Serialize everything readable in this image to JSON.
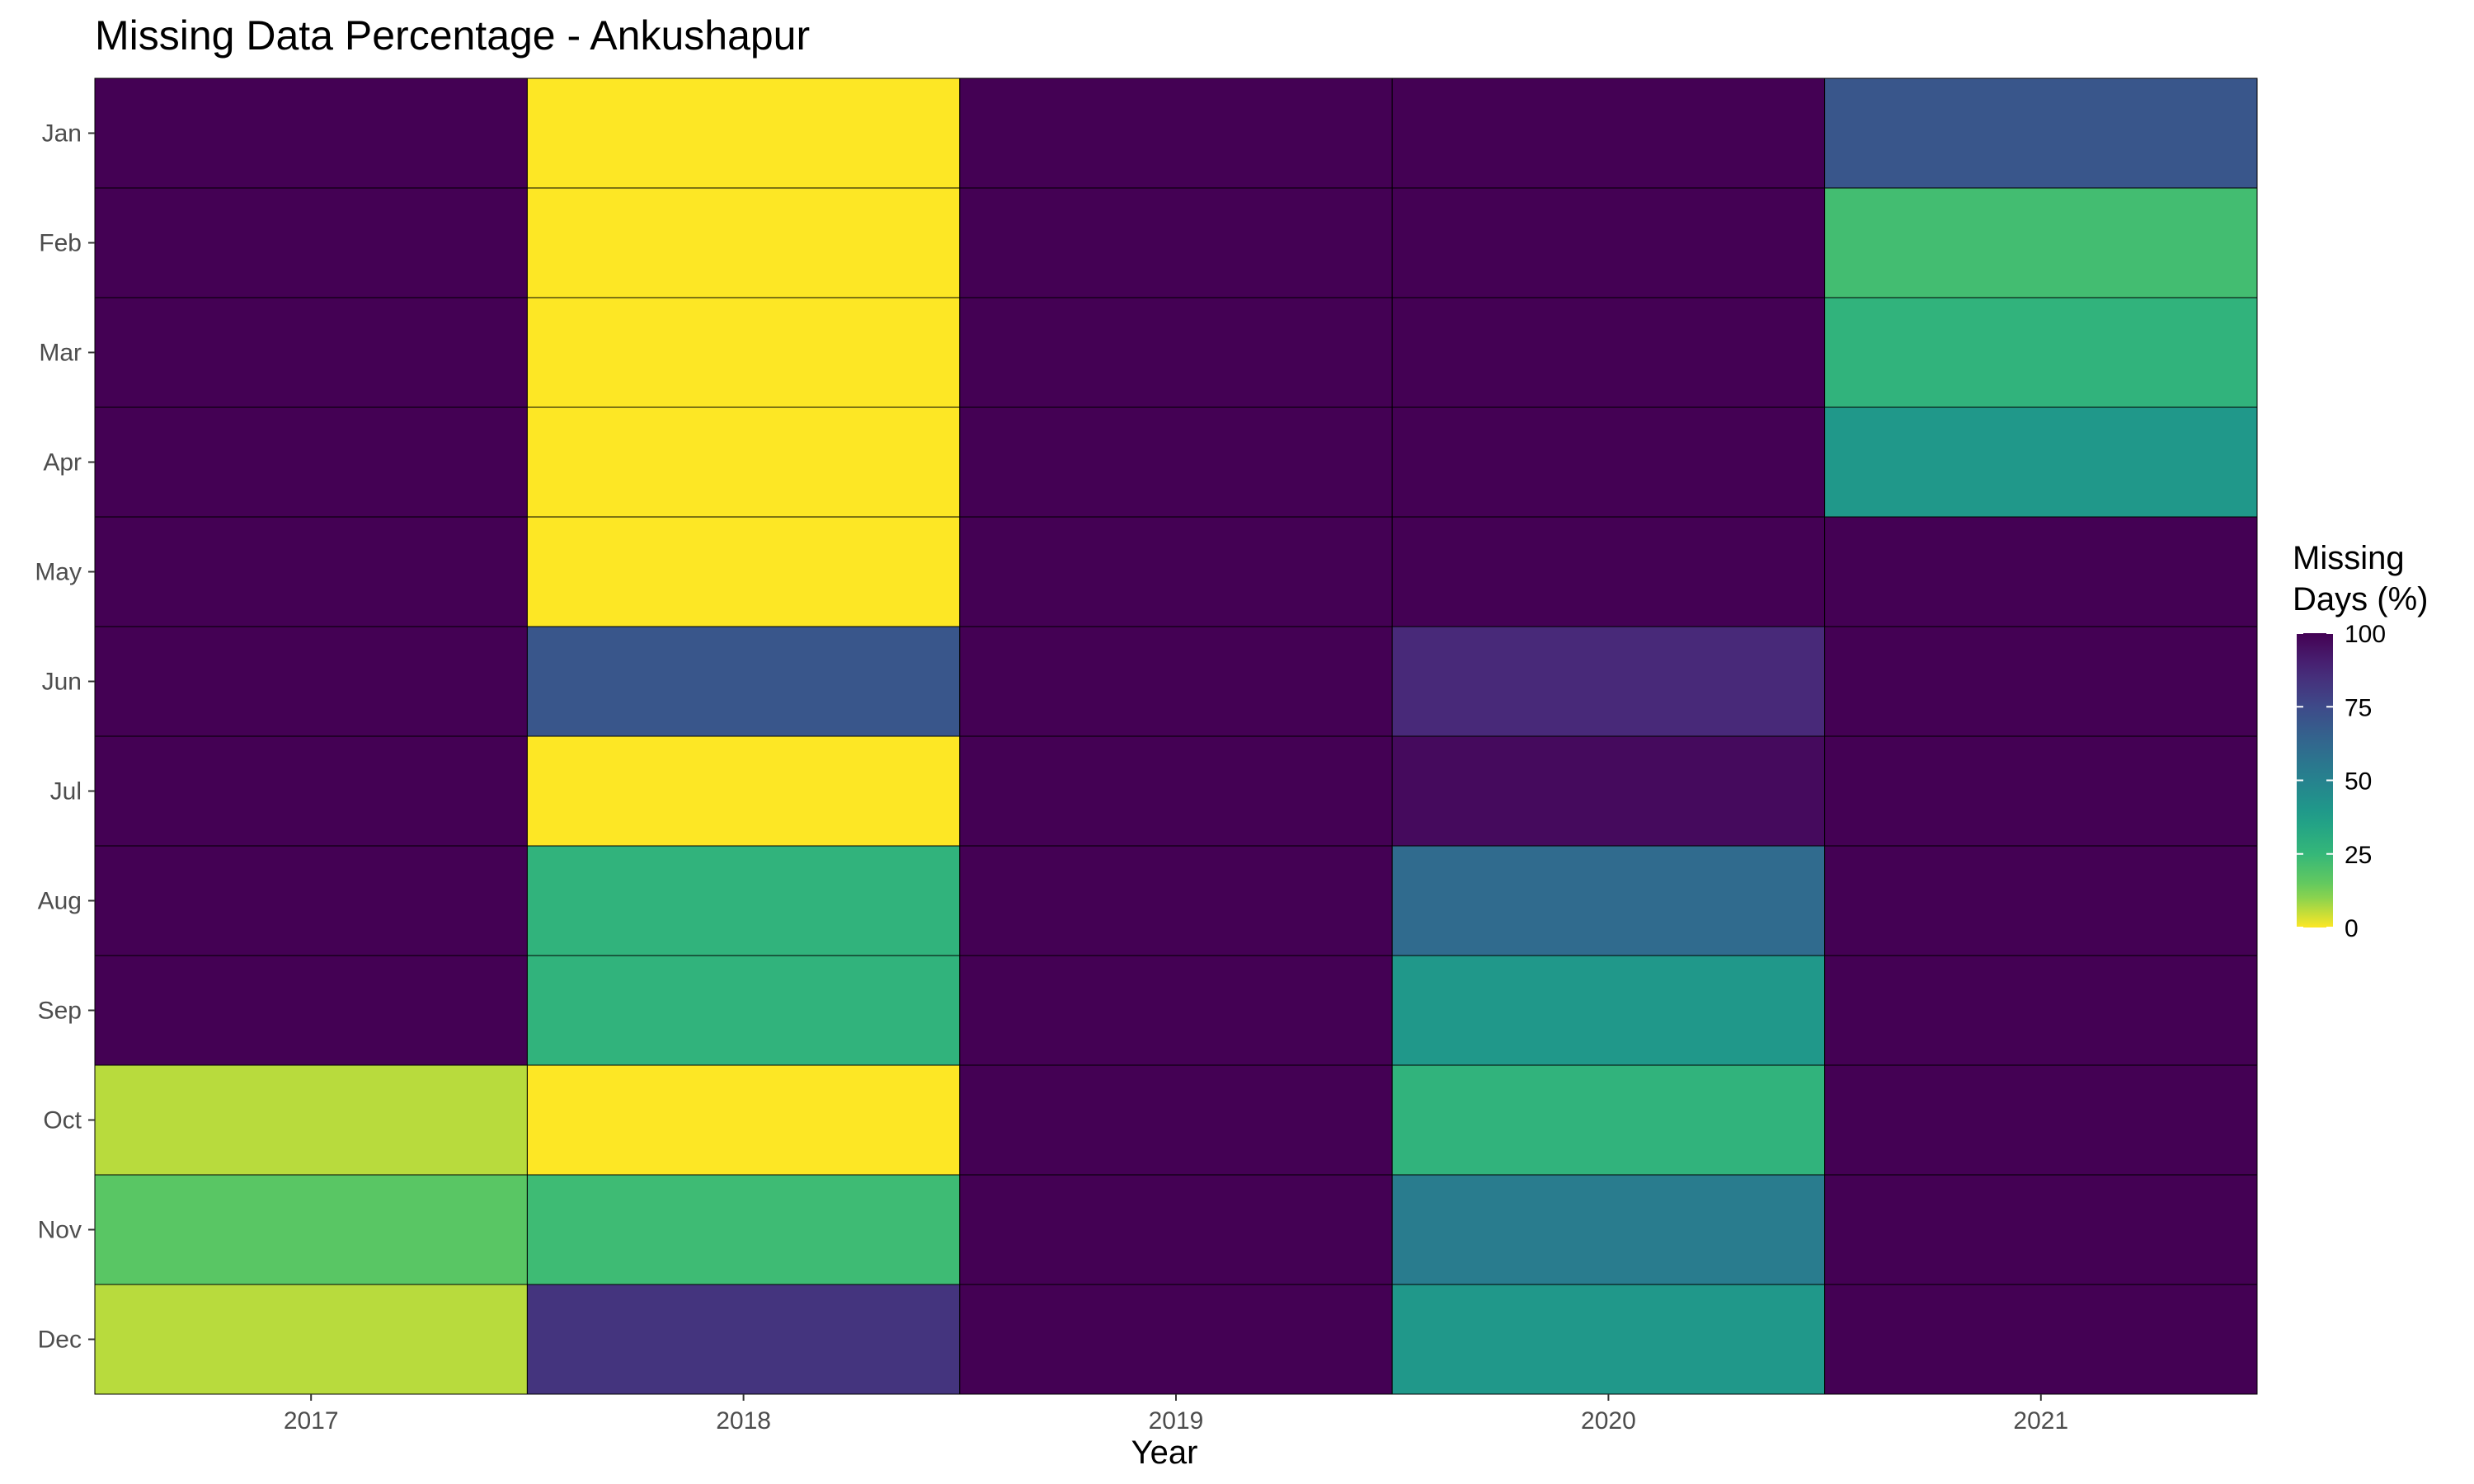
{
  "chart_data": {
    "type": "heatmap",
    "title": "Missing Data Percentage - Ankushapur",
    "xlabel": "Year",
    "ylabel": "",
    "x_categories": [
      "2017",
      "2018",
      "2019",
      "2020",
      "2021"
    ],
    "y_categories": [
      "Jan",
      "Feb",
      "Mar",
      "Apr",
      "May",
      "Jun",
      "Jul",
      "Aug",
      "Sep",
      "Oct",
      "Nov",
      "Dec"
    ],
    "values": [
      [
        100,
        0,
        100,
        100,
        70
      ],
      [
        100,
        0,
        100,
        100,
        22
      ],
      [
        100,
        0,
        100,
        100,
        27
      ],
      [
        100,
        0,
        100,
        100,
        40
      ],
      [
        100,
        0,
        100,
        100,
        100
      ],
      [
        100,
        70,
        100,
        87,
        100
      ],
      [
        100,
        0,
        100,
        97,
        100
      ],
      [
        100,
        27,
        100,
        61,
        100
      ],
      [
        100,
        27,
        100,
        40,
        100
      ],
      [
        6,
        0,
        100,
        27,
        100
      ],
      [
        17,
        23,
        100,
        53,
        100
      ],
      [
        6,
        83,
        100,
        40,
        100
      ]
    ],
    "legend": {
      "title_lines": [
        "Missing",
        "Days (%)"
      ],
      "ticks": [
        "100",
        "75",
        "50",
        "25",
        "0"
      ],
      "range": [
        0,
        100
      ],
      "position": "right"
    },
    "colormap": "viridis",
    "grid": false
  }
}
